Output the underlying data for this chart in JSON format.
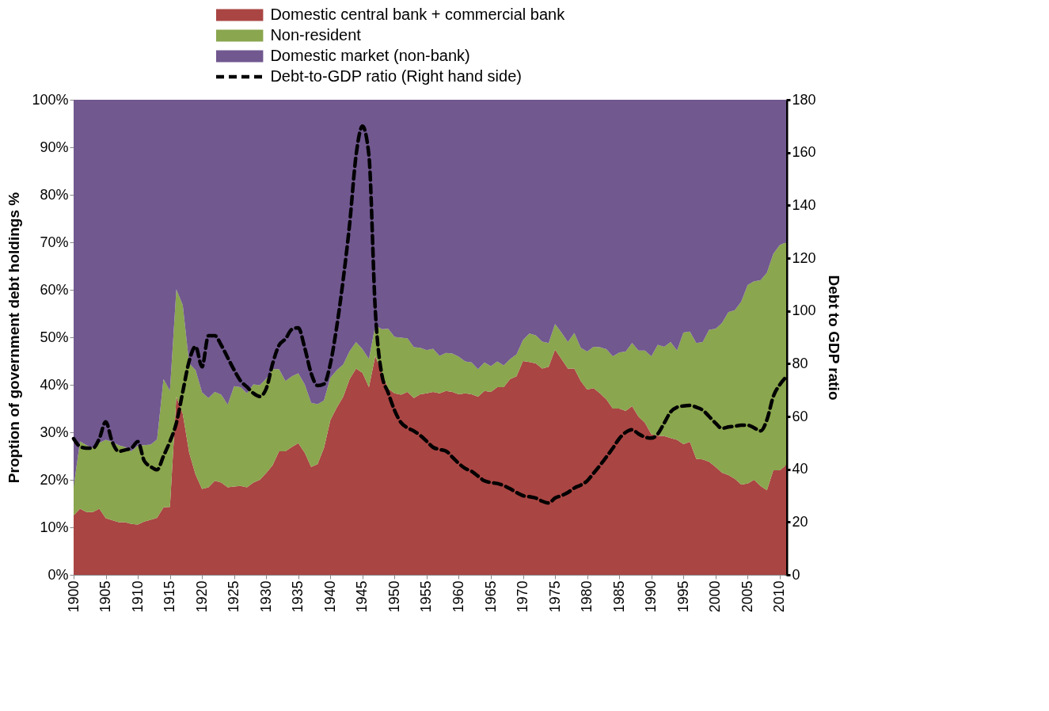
{
  "chart_data": {
    "type": "area",
    "stacked": true,
    "legend": "top",
    "ylabel": "Proption of government debt holdings %",
    "y2label": "Debt to GDP ratio",
    "x": [
      1900,
      1901,
      1902,
      1903,
      1904,
      1905,
      1906,
      1907,
      1908,
      1909,
      1910,
      1911,
      1912,
      1913,
      1914,
      1915,
      1916,
      1917,
      1918,
      1919,
      1920,
      1921,
      1922,
      1923,
      1924,
      1925,
      1926,
      1927,
      1928,
      1929,
      1930,
      1931,
      1932,
      1933,
      1934,
      1935,
      1936,
      1937,
      1938,
      1939,
      1940,
      1941,
      1942,
      1943,
      1944,
      1945,
      1946,
      1947,
      1948,
      1949,
      1950,
      1951,
      1952,
      1953,
      1954,
      1955,
      1956,
      1957,
      1958,
      1959,
      1960,
      1961,
      1962,
      1963,
      1964,
      1965,
      1966,
      1967,
      1968,
      1969,
      1970,
      1971,
      1972,
      1973,
      1974,
      1975,
      1976,
      1977,
      1978,
      1979,
      1980,
      1981,
      1982,
      1983,
      1984,
      1985,
      1986,
      1987,
      1988,
      1989,
      1990,
      1991,
      1992,
      1993,
      1994,
      1995,
      1996,
      1997,
      1998,
      1999,
      2000,
      2001,
      2002,
      2003,
      2004,
      2005,
      2006,
      2007,
      2008,
      2009,
      2010,
      2011
    ],
    "xlim": [
      1900,
      2011
    ],
    "xticks": [
      1900,
      1905,
      1910,
      1915,
      1920,
      1925,
      1930,
      1935,
      1940,
      1945,
      1950,
      1955,
      1960,
      1965,
      1970,
      1975,
      1980,
      1985,
      1990,
      1995,
      2000,
      2005,
      2010
    ],
    "ylim": [
      0,
      100
    ],
    "yticks": [
      {
        "value": 0,
        "label": "0%"
      },
      {
        "value": 10,
        "label": "10%"
      },
      {
        "value": 20,
        "label": "20%"
      },
      {
        "value": 30,
        "label": "30%"
      },
      {
        "value": 40,
        "label": "40%"
      },
      {
        "value": 50,
        "label": "50%"
      },
      {
        "value": 60,
        "label": "60%"
      },
      {
        "value": 70,
        "label": "70%"
      },
      {
        "value": 80,
        "label": "80%"
      },
      {
        "value": 90,
        "label": "90%"
      },
      {
        "value": 100,
        "label": "100%"
      }
    ],
    "y2lim": [
      0,
      180
    ],
    "y2ticks": [
      0,
      20,
      40,
      60,
      80,
      100,
      120,
      140,
      160,
      180
    ],
    "series": [
      {
        "name": "Domestic central bank + commercial bank",
        "color": "#a94543",
        "values": [
          12.5,
          13.9,
          13.2,
          13.2,
          13.9,
          11.9,
          11.5,
          11.1,
          11.1,
          10.7,
          10.6,
          11.2,
          11.6,
          12.0,
          14.2,
          14.3,
          37.5,
          33.9,
          25.7,
          21.1,
          18.1,
          18.4,
          19.8,
          19.4,
          18.4,
          18.6,
          18.7,
          18.4,
          19.4,
          20.0,
          21.4,
          23.1,
          26.0,
          26.0,
          26.9,
          27.7,
          25.7,
          22.7,
          23.3,
          26.7,
          32.6,
          35.2,
          37.5,
          41.2,
          43.4,
          42.5,
          39.5,
          46.1,
          42.5,
          39.2,
          38.2,
          37.9,
          38.5,
          37.2,
          38.0,
          38.2,
          38.5,
          38.2,
          38.7,
          38.5,
          38.0,
          38.2,
          38.0,
          37.5,
          38.7,
          38.5,
          39.5,
          39.5,
          41.2,
          41.8,
          45.0,
          44.8,
          44.5,
          43.4,
          43.8,
          47.4,
          45.4,
          43.4,
          43.4,
          40.8,
          39.0,
          39.3,
          38.2,
          36.9,
          35.0,
          35.0,
          34.5,
          35.5,
          33.3,
          32.0,
          29.6,
          29.3,
          29.2,
          28.8,
          28.4,
          27.5,
          28.0,
          24.4,
          24.3,
          23.8,
          22.7,
          21.5,
          21.0,
          20.2,
          19.0,
          19.2,
          20.0,
          18.7,
          17.8,
          22.0,
          22.0,
          23.1
        ]
      },
      {
        "name": "Non-resident",
        "color": "#8aa64e",
        "values": [
          6.0,
          14.2,
          14.1,
          13.5,
          13.9,
          16.5,
          16.5,
          16.2,
          15.8,
          15.3,
          16.6,
          16.1,
          15.8,
          16.5,
          27.0,
          24.4,
          22.6,
          22.9,
          18.8,
          22.0,
          20.3,
          18.8,
          18.7,
          18.5,
          17.4,
          21.1,
          20.8,
          19.8,
          20.7,
          19.9,
          19.9,
          20.2,
          17.3,
          14.8,
          14.9,
          14.7,
          14.4,
          13.5,
          12.6,
          10.0,
          8.9,
          7.9,
          6.8,
          5.9,
          5.6,
          5.0,
          5.9,
          6.4,
          9.2,
          12.6,
          11.9,
          12.0,
          11.3,
          10.7,
          9.8,
          9.1,
          9.1,
          7.9,
          8.0,
          8.1,
          7.9,
          6.7,
          6.7,
          5.8,
          6.0,
          5.4,
          5.4,
          4.6,
          4.2,
          4.6,
          4.4,
          6.0,
          5.9,
          5.7,
          5.0,
          5.4,
          5.6,
          5.6,
          7.5,
          7.0,
          8.0,
          8.7,
          9.7,
          10.6,
          11.0,
          11.8,
          12.5,
          13.3,
          13.9,
          15.2,
          16.4,
          19.1,
          18.8,
          20.2,
          18.8,
          23.5,
          23.2,
          24.4,
          24.7,
          27.8,
          29.1,
          31.5,
          34.3,
          35.5,
          38.5,
          41.8,
          41.8,
          43.3,
          45.8,
          45.6,
          47.4,
          46.9
        ]
      },
      {
        "name": "Domestic market (non-bank)",
        "color": "#71588f",
        "values": [
          81.5,
          71.9,
          72.7,
          73.3,
          72.2,
          71.6,
          72.0,
          72.7,
          73.1,
          74.0,
          72.8,
          72.7,
          72.6,
          71.5,
          58.8,
          61.3,
          39.9,
          43.2,
          55.5,
          56.9,
          61.6,
          62.8,
          61.5,
          62.1,
          64.2,
          60.3,
          60.5,
          61.8,
          59.9,
          60.1,
          58.7,
          56.7,
          56.7,
          59.2,
          58.2,
          57.6,
          59.9,
          63.8,
          64.1,
          63.3,
          58.5,
          56.9,
          55.7,
          52.9,
          51.0,
          52.5,
          54.6,
          47.5,
          48.3,
          48.2,
          49.9,
          50.1,
          50.2,
          52.1,
          52.2,
          52.7,
          52.4,
          53.9,
          53.3,
          53.4,
          54.1,
          55.1,
          55.3,
          56.7,
          55.3,
          56.1,
          55.1,
          55.9,
          54.6,
          53.6,
          50.6,
          49.2,
          49.6,
          50.9,
          51.2,
          47.2,
          49.0,
          51.0,
          49.1,
          52.2,
          53.0,
          52.0,
          52.1,
          52.5,
          54.0,
          53.2,
          53.0,
          51.2,
          52.8,
          52.8,
          54.0,
          51.6,
          52.0,
          51.0,
          52.8,
          49.0,
          48.8,
          51.2,
          51.0,
          48.4,
          48.2,
          47.0,
          44.7,
          44.3,
          42.5,
          39.0,
          38.2,
          38.0,
          36.4,
          32.4,
          30.6,
          30.0
        ]
      },
      {
        "name": "Debt-to-GDP ratio (Right hand side)",
        "color": "#000000",
        "type": "line",
        "axis": "y2",
        "line_style": "dashed",
        "values": [
          51.6,
          48.6,
          48,
          48,
          51.6,
          58,
          50.5,
          46.8,
          47.3,
          48,
          50.5,
          43.2,
          41,
          39.8,
          45,
          50.5,
          57.5,
          69.3,
          81,
          86.5,
          78.8,
          90.6,
          90.6,
          87,
          82.3,
          77.6,
          73.5,
          71.2,
          68.8,
          67.6,
          70.5,
          80,
          87,
          89.4,
          93,
          93.6,
          86,
          76.4,
          71.7,
          72.3,
          80,
          94.2,
          112,
          133,
          159,
          170,
          159,
          100,
          76,
          69,
          62.3,
          57.7,
          55.7,
          54.5,
          52.8,
          50.6,
          48.3,
          47.5,
          46.9,
          44.6,
          42.2,
          40.3,
          39.2,
          37.4,
          35.6,
          35,
          34.6,
          33.8,
          32.6,
          31.2,
          30,
          29.6,
          29.1,
          27.9,
          27.2,
          29.1,
          30,
          31.2,
          32.9,
          34,
          35.6,
          38.5,
          41.5,
          44.7,
          48,
          51.6,
          54,
          55,
          53.4,
          52.2,
          51.8,
          53.4,
          57.5,
          61.7,
          63.5,
          64,
          64.2,
          63.5,
          62.4,
          60,
          57.5,
          55.5,
          56,
          56.3,
          56.7,
          56.7,
          55.7,
          54.5,
          58.7,
          67.6,
          72,
          75
        ]
      }
    ]
  }
}
